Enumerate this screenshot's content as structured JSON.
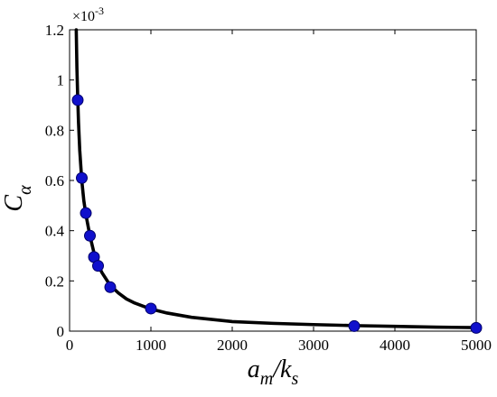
{
  "chart_data": {
    "type": "scatter",
    "title": "",
    "xlabel": {
      "main": "a",
      "sub1": "m",
      "slash": "/k",
      "sub2": "s"
    },
    "ylabel": {
      "main": "C",
      "sub": "α"
    },
    "xlim": [
      0,
      5000
    ],
    "ylim": [
      0,
      0.0012
    ],
    "x_ticks": [
      0,
      1000,
      2000,
      3000,
      4000,
      5000
    ],
    "x_tick_labels": [
      "0",
      "1000",
      "2000",
      "3000",
      "4000",
      "5000"
    ],
    "y_ticks": [
      0,
      0.0002,
      0.0004,
      0.0006,
      0.0008,
      0.001,
      0.0012
    ],
    "y_tick_labels": [
      "0",
      "0.2",
      "0.4",
      "0.6",
      "0.8",
      "1",
      "1.2"
    ],
    "y_exponent_label": "×10",
    "y_exponent_power": "-3",
    "grid": false,
    "legend": "none",
    "series": [
      {
        "kind": "points",
        "color": "#1010cc",
        "x": [
          100,
          150,
          200,
          250,
          300,
          350,
          500,
          1000,
          3500,
          5000
        ],
        "y": [
          0.00092,
          0.00061,
          0.00047,
          0.00038,
          0.000295,
          0.00026,
          0.000175,
          9e-05,
          2e-05,
          1.3e-05
        ]
      },
      {
        "kind": "fit-line",
        "color": "#000000",
        "x": [
          82,
          90,
          100,
          110,
          125,
          150,
          175,
          200,
          250,
          300,
          350,
          400,
          500,
          600,
          700,
          800,
          1000,
          1200,
          1500,
          2000,
          2500,
          3000,
          3500,
          4000,
          4500,
          5000
        ],
        "y": [
          0.0012,
          0.00105,
          0.00093,
          0.00083,
          0.00072,
          0.0006,
          0.00052,
          0.000465,
          0.00038,
          0.000312,
          0.000263,
          0.000232,
          0.000182,
          0.000152,
          0.000128,
          0.000112,
          8.8e-05,
          7.2e-05,
          5.5e-05,
          3.8e-05,
          3.1e-05,
          2.6e-05,
          2.2e-05,
          1.9e-05,
          1.6e-05,
          1.4e-05
        ]
      }
    ]
  }
}
